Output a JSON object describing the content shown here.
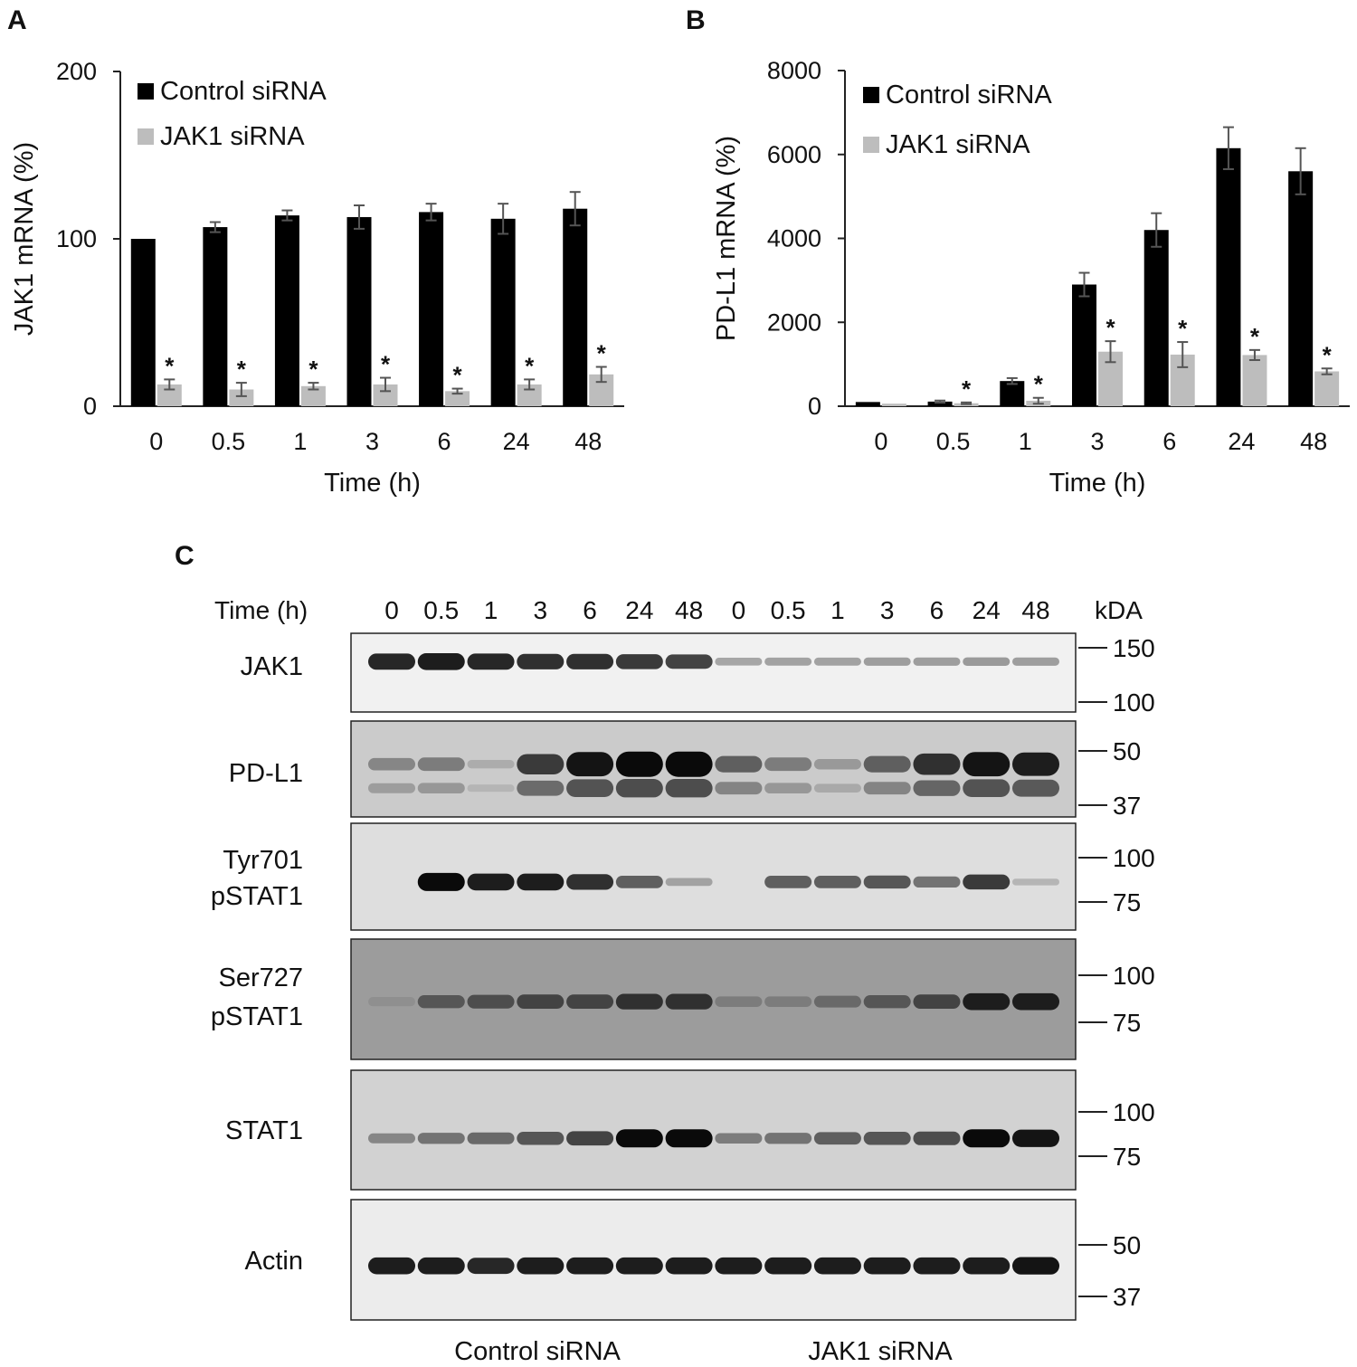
{
  "chart_data": [
    {
      "panel": "A",
      "type": "bar",
      "categories": [
        "0",
        "0.5",
        "1",
        "3",
        "6",
        "24",
        "48"
      ],
      "xlabel": "Time (h)",
      "ylabel": "JAK1 mRNA (%)",
      "ylim": [
        0,
        200
      ],
      "yticks": [
        "0",
        "100",
        "200"
      ],
      "legend_placement": "top-left",
      "grid": false,
      "series": [
        {
          "name": "Control siRNA",
          "color": "#000000",
          "values": [
            100,
            107,
            114,
            113,
            116,
            112,
            118
          ],
          "errors": [
            0,
            3,
            3,
            7,
            5,
            9,
            10
          ],
          "significance": [
            "",
            "",
            "",
            "",
            "",
            "",
            ""
          ]
        },
        {
          "name": "JAK1 siRNA",
          "color": "#bdbdbd",
          "values": [
            13,
            10,
            12,
            13,
            9,
            13,
            19
          ],
          "errors": [
            3,
            4,
            2,
            4,
            1.5,
            3,
            4.5
          ],
          "significance": [
            "*",
            "*",
            "*",
            "*",
            "*",
            "*",
            "*"
          ]
        }
      ]
    },
    {
      "panel": "B",
      "type": "bar",
      "categories": [
        "0",
        "0.5",
        "1",
        "3",
        "6",
        "24",
        "48"
      ],
      "xlabel": "Time (h)",
      "ylabel": "PD-L1 mRNA (%)",
      "ylim": [
        0,
        8000
      ],
      "yticks": [
        "0",
        "2000",
        "4000",
        "6000",
        "8000"
      ],
      "legend_placement": "top-left",
      "grid": false,
      "series": [
        {
          "name": "Control siRNA",
          "color": "#000000",
          "values": [
            100,
            110,
            600,
            2900,
            4200,
            6150,
            5600
          ],
          "errors": [
            0,
            25,
            70,
            280,
            400,
            500,
            550
          ],
          "significance": [
            "",
            "",
            "",
            "",
            "",
            "",
            ""
          ]
        },
        {
          "name": "JAK1 siRNA",
          "color": "#bdbdbd",
          "values": [
            60,
            70,
            130,
            1300,
            1230,
            1220,
            830
          ],
          "errors": [
            0,
            20,
            70,
            250,
            300,
            120,
            70
          ],
          "significance": [
            "",
            "*",
            "*",
            "*",
            "*",
            "*",
            "*"
          ]
        }
      ]
    }
  ],
  "blot": {
    "panel": "C",
    "time_label": "Time (h)",
    "lanes": [
      "0",
      "0.5",
      "1",
      "3",
      "6",
      "24",
      "48",
      "0",
      "0.5",
      "1",
      "3",
      "6",
      "24",
      "48"
    ],
    "kda_label": "kDA",
    "groups": [
      "Control siRNA",
      "JAK1 siRNA"
    ],
    "rows": [
      {
        "label_lines": [
          "JAK1"
        ],
        "markers": [
          "150",
          "100"
        ],
        "bg": "#f1f1f1",
        "intensity": [
          0.85,
          0.9,
          0.85,
          0.8,
          0.8,
          0.75,
          0.7,
          0.18,
          0.2,
          0.2,
          0.22,
          0.22,
          0.24,
          0.22
        ]
      },
      {
        "label_lines": [
          "PD-L1"
        ],
        "markers": [
          "50",
          "37"
        ],
        "bg": "#cbcbcb",
        "intensity": [
          0.35,
          0.4,
          0.15,
          0.75,
          0.95,
          1.0,
          1.0,
          0.55,
          0.4,
          0.25,
          0.55,
          0.8,
          0.95,
          0.9
        ]
      },
      {
        "label_lines": [
          "Tyr701",
          "pSTAT1"
        ],
        "markers": [
          "100",
          "75"
        ],
        "bg": "#dedede",
        "intensity": [
          0.0,
          1.0,
          0.9,
          0.9,
          0.8,
          0.55,
          0.2,
          0.0,
          0.55,
          0.55,
          0.6,
          0.45,
          0.75,
          0.1
        ]
      },
      {
        "label_lines": [
          "Ser727",
          "pSTAT1"
        ],
        "markers": [
          "100",
          "75"
        ],
        "bg": "#9c9c9c",
        "intensity": [
          0.3,
          0.6,
          0.65,
          0.7,
          0.7,
          0.8,
          0.8,
          0.4,
          0.4,
          0.5,
          0.6,
          0.7,
          0.9,
          0.9
        ]
      },
      {
        "label_lines": [
          "STAT1"
        ],
        "markers": [
          "100",
          "75"
        ],
        "bg": "#d2d2d2",
        "intensity": [
          0.35,
          0.45,
          0.5,
          0.6,
          0.7,
          1.0,
          1.0,
          0.4,
          0.45,
          0.55,
          0.6,
          0.65,
          1.0,
          0.95
        ]
      },
      {
        "label_lines": [
          "Actin"
        ],
        "markers": [
          "50",
          "37"
        ],
        "bg": "#ececec",
        "intensity": [
          0.9,
          0.9,
          0.85,
          0.9,
          0.9,
          0.9,
          0.9,
          0.9,
          0.9,
          0.9,
          0.9,
          0.9,
          0.9,
          0.95
        ]
      }
    ]
  }
}
